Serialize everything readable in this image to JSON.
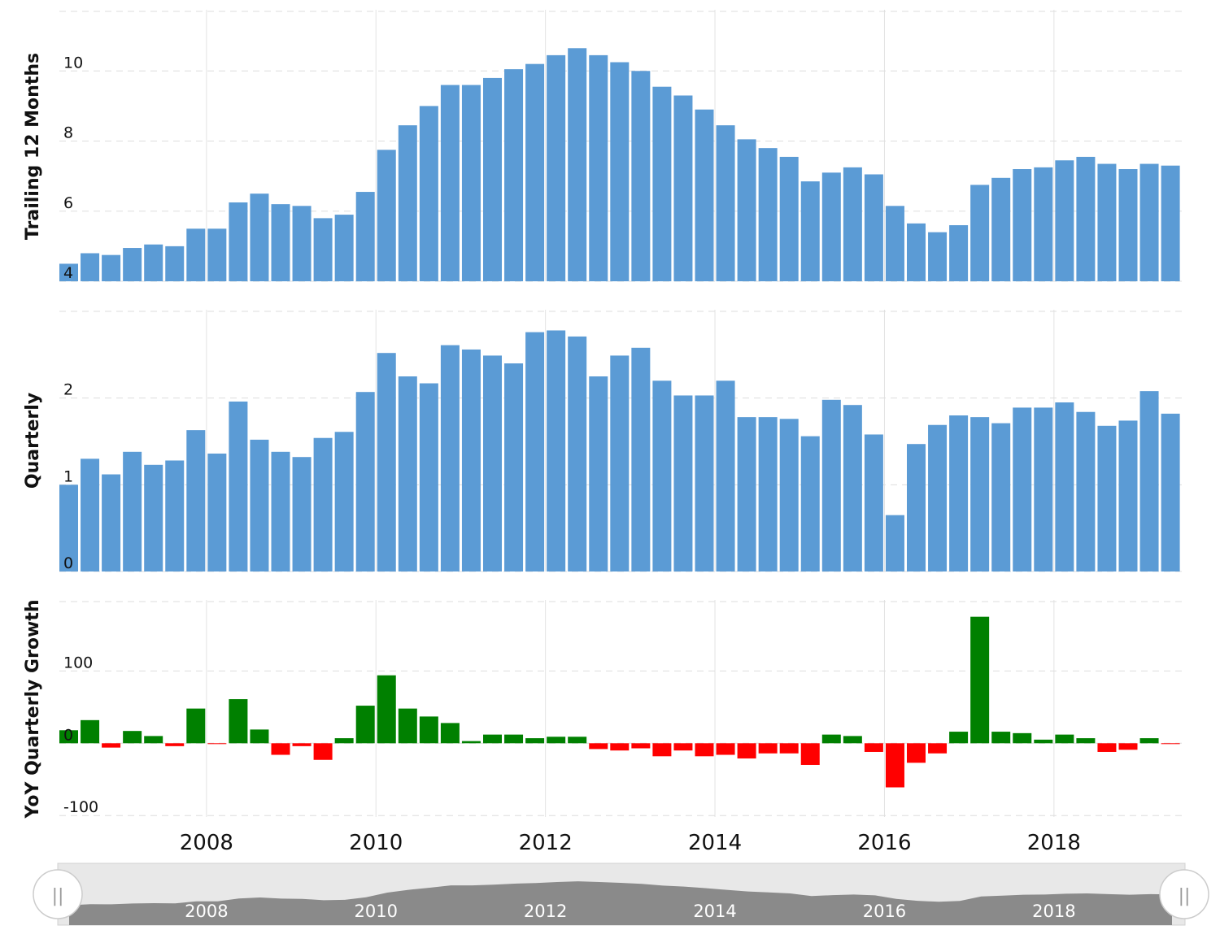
{
  "chart_data": [
    {
      "type": "bar",
      "ylabel": "Trailing 12 Months",
      "ylim": [
        4,
        11.7
      ],
      "yticks": [
        4,
        6,
        8,
        10
      ],
      "x_start": "2006-Q2",
      "values": [
        4.5,
        4.8,
        4.75,
        4.95,
        5.05,
        5.0,
        5.5,
        5.5,
        6.25,
        6.5,
        6.2,
        6.15,
        5.8,
        5.9,
        6.55,
        7.75,
        8.45,
        9.0,
        9.6,
        9.6,
        9.8,
        10.05,
        10.2,
        10.45,
        10.65,
        10.45,
        10.25,
        10.0,
        9.55,
        9.3,
        8.9,
        8.45,
        8.05,
        7.8,
        7.55,
        6.85,
        7.1,
        7.25,
        7.05,
        6.15,
        5.65,
        5.4,
        5.6,
        6.75,
        6.95,
        7.2,
        7.25,
        7.45,
        7.55,
        7.35,
        7.2,
        7.35,
        7.3
      ]
    },
    {
      "type": "bar",
      "ylabel": "Quarterly",
      "ylim": [
        0,
        3.0
      ],
      "yticks": [
        0,
        1,
        2
      ],
      "x_start": "2006-Q2",
      "values": [
        1.0,
        1.3,
        1.12,
        1.38,
        1.23,
        1.28,
        1.63,
        1.36,
        1.96,
        1.52,
        1.38,
        1.32,
        1.54,
        1.61,
        2.07,
        2.52,
        2.25,
        2.17,
        2.61,
        2.56,
        2.49,
        2.4,
        2.76,
        2.78,
        2.71,
        2.25,
        2.49,
        2.58,
        2.2,
        2.03,
        2.03,
        2.2,
        1.78,
        1.78,
        1.76,
        1.56,
        1.98,
        1.92,
        1.58,
        0.65,
        1.47,
        1.69,
        1.8,
        1.78,
        1.71,
        1.89,
        1.89,
        1.95,
        1.84,
        1.68,
        1.74,
        2.08,
        1.82
      ]
    },
    {
      "type": "bar",
      "ylabel": "YoY Quarterly Growth",
      "ylim": [
        -102,
        196
      ],
      "yticks": [
        -100,
        0,
        100
      ],
      "x_start": "2006-Q2",
      "positive_color": "#008000",
      "negative_color": "#ff0000",
      "values": [
        18,
        32,
        -6,
        17,
        10,
        -4,
        48,
        -1,
        61,
        19,
        -16,
        -4,
        -23,
        7,
        52,
        94,
        48,
        37,
        28,
        3,
        12,
        12,
        7,
        9,
        9,
        -8,
        -10,
        -7,
        -18,
        -10,
        -18,
        -16,
        -21,
        -14,
        -14,
        -30,
        12,
        10,
        -12,
        -61,
        -27,
        -14,
        16,
        175,
        16,
        14,
        5,
        12,
        7,
        -12,
        -9,
        7,
        -1
      ]
    }
  ],
  "x_axis": {
    "tick_labels": [
      "2008",
      "2010",
      "2012",
      "2014",
      "2016",
      "2018"
    ]
  },
  "navigator": {
    "tick_labels": [
      "2008",
      "2010",
      "2012",
      "2014",
      "2016",
      "2018"
    ],
    "left_handle_glyph": "||",
    "right_handle_glyph": "||"
  },
  "colors": {
    "bar": "#5b9bd5",
    "grid_dashed": "#dddddd",
    "grid_vertical": "#e3e3e3",
    "navigator_area": "#8a8a8a",
    "navigator_track": "#e8e8e8"
  }
}
